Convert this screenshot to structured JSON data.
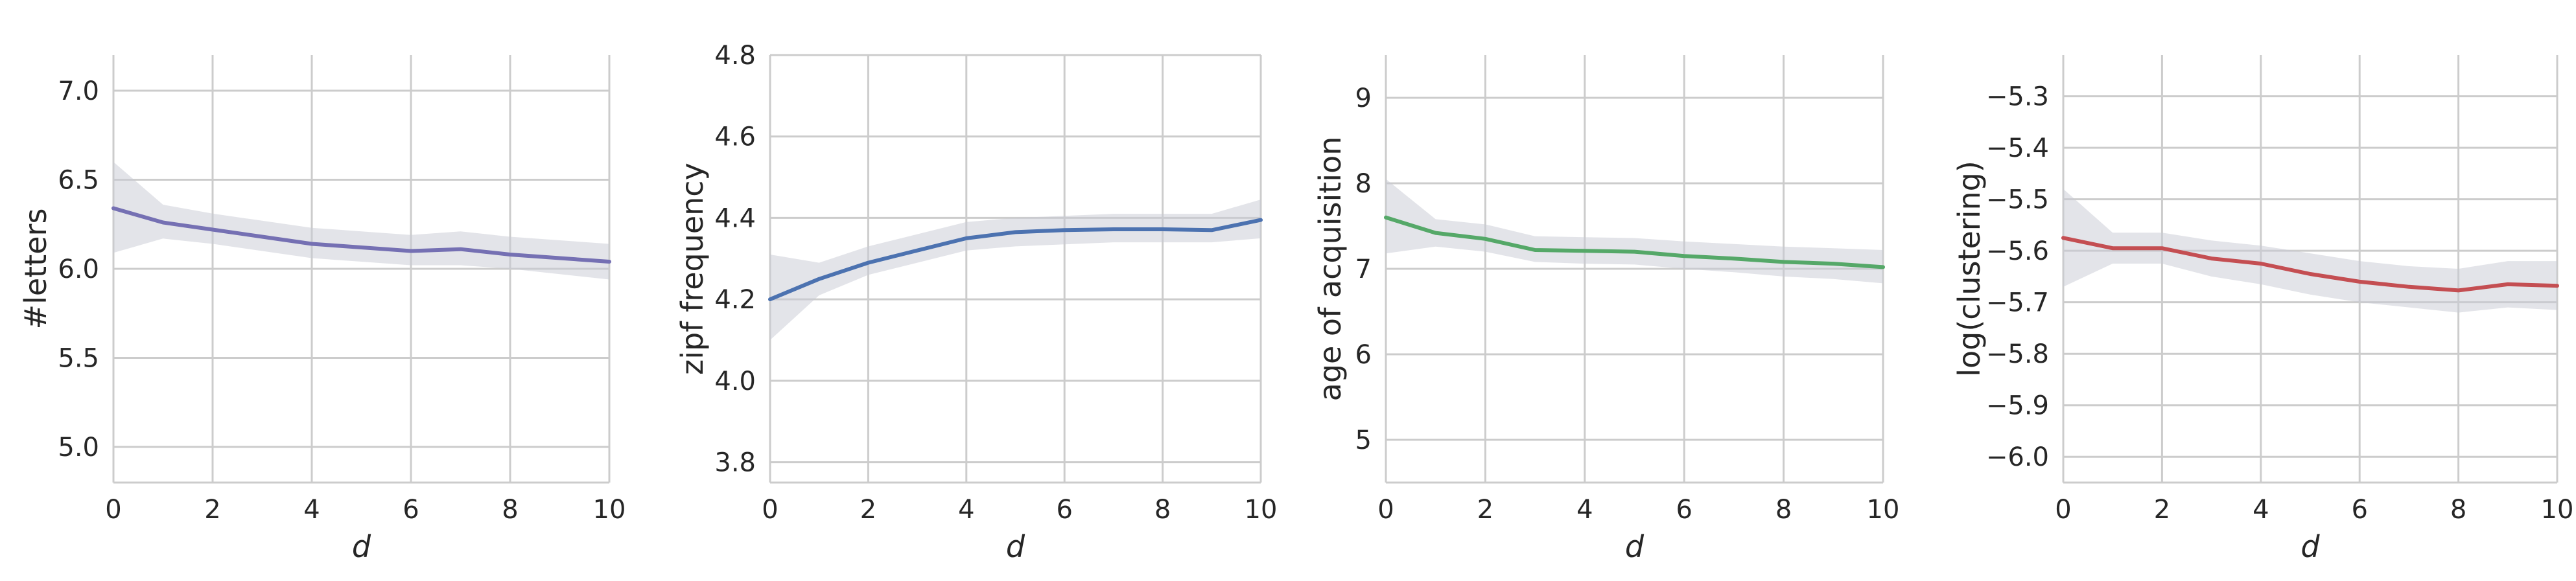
{
  "chart_data": [
    {
      "type": "line",
      "xlabel": "d",
      "ylabel": "#letters",
      "color": "#7570b3",
      "xlim": [
        0,
        10
      ],
      "ylim": [
        4.8,
        7.2
      ],
      "xticks": [
        0,
        2,
        4,
        6,
        8,
        10
      ],
      "yticks": [
        5.0,
        5.5,
        6.0,
        6.5,
        7.0
      ],
      "ytick_labels": [
        "5.0",
        "5.5",
        "6.0",
        "6.5",
        "7.0"
      ],
      "x": [
        0,
        1,
        2,
        3,
        4,
        5,
        6,
        7,
        8,
        9,
        10
      ],
      "y": [
        6.34,
        6.26,
        6.22,
        6.18,
        6.14,
        6.12,
        6.1,
        6.11,
        6.08,
        6.06,
        6.04
      ],
      "lower": [
        6.09,
        6.17,
        6.14,
        6.1,
        6.06,
        6.04,
        6.02,
        6.02,
        6.0,
        5.97,
        5.94
      ],
      "upper": [
        6.6,
        6.36,
        6.31,
        6.27,
        6.23,
        6.21,
        6.19,
        6.21,
        6.18,
        6.16,
        6.14
      ],
      "grid": true
    },
    {
      "type": "line",
      "xlabel": "d",
      "ylabel": "zipf frequency",
      "color": "#4c72b0",
      "xlim": [
        0,
        10
      ],
      "ylim": [
        3.75,
        4.8
      ],
      "xticks": [
        0,
        2,
        4,
        6,
        8,
        10
      ],
      "yticks": [
        3.8,
        4.0,
        4.2,
        4.4,
        4.6,
        4.8
      ],
      "ytick_labels": [
        "3.8",
        "4.0",
        "4.2",
        "4.4",
        "4.6",
        "4.8"
      ],
      "x": [
        0,
        1,
        2,
        3,
        4,
        5,
        6,
        7,
        8,
        9,
        10
      ],
      "y": [
        4.2,
        4.25,
        4.29,
        4.32,
        4.35,
        4.365,
        4.37,
        4.372,
        4.372,
        4.37,
        4.395
      ],
      "lower": [
        4.1,
        4.21,
        4.26,
        4.29,
        4.32,
        4.33,
        4.335,
        4.34,
        4.34,
        4.34,
        4.35
      ],
      "upper": [
        4.31,
        4.29,
        4.33,
        4.36,
        4.39,
        4.4,
        4.405,
        4.41,
        4.41,
        4.41,
        4.445
      ],
      "grid": true
    },
    {
      "type": "line",
      "xlabel": "d",
      "ylabel": "age of acquisition",
      "color": "#55a868",
      "xlim": [
        0,
        10
      ],
      "ylim": [
        4.5,
        9.5
      ],
      "xticks": [
        0,
        2,
        4,
        6,
        8,
        10
      ],
      "yticks": [
        5,
        6,
        7,
        8,
        9
      ],
      "ytick_labels": [
        "5",
        "6",
        "7",
        "8",
        "9"
      ],
      "x": [
        0,
        1,
        2,
        3,
        4,
        5,
        6,
        7,
        8,
        9,
        10
      ],
      "y": [
        7.6,
        7.42,
        7.35,
        7.22,
        7.21,
        7.2,
        7.15,
        7.12,
        7.08,
        7.06,
        7.02
      ],
      "lower": [
        7.18,
        7.26,
        7.2,
        7.08,
        7.06,
        7.05,
        7.0,
        6.96,
        6.91,
        6.88,
        6.83
      ],
      "upper": [
        8.05,
        7.58,
        7.52,
        7.38,
        7.37,
        7.36,
        7.32,
        7.29,
        7.26,
        7.24,
        7.22
      ],
      "grid": true
    },
    {
      "type": "line",
      "xlabel": "d",
      "ylabel": "log(clustering)",
      "color": "#c44e52",
      "xlim": [
        0,
        10
      ],
      "ylim": [
        -6.05,
        -5.22
      ],
      "xticks": [
        0,
        2,
        4,
        6,
        8,
        10
      ],
      "yticks": [
        -6.0,
        -5.9,
        -5.8,
        -5.7,
        -5.6,
        -5.5,
        -5.4,
        -5.3
      ],
      "ytick_labels": [
        "−6.0",
        "−5.9",
        "−5.8",
        "−5.7",
        "−5.6",
        "−5.5",
        "−5.4",
        "−5.3"
      ],
      "x": [
        0,
        1,
        2,
        3,
        4,
        5,
        6,
        7,
        8,
        9,
        10
      ],
      "y": [
        -5.575,
        -5.595,
        -5.595,
        -5.615,
        -5.625,
        -5.645,
        -5.66,
        -5.67,
        -5.677,
        -5.665,
        -5.668
      ],
      "lower": [
        -5.67,
        -5.625,
        -5.625,
        -5.65,
        -5.665,
        -5.685,
        -5.7,
        -5.71,
        -5.72,
        -5.71,
        -5.715
      ],
      "upper": [
        -5.48,
        -5.565,
        -5.565,
        -5.58,
        -5.59,
        -5.605,
        -5.62,
        -5.63,
        -5.635,
        -5.62,
        -5.62
      ],
      "grid": true
    }
  ]
}
